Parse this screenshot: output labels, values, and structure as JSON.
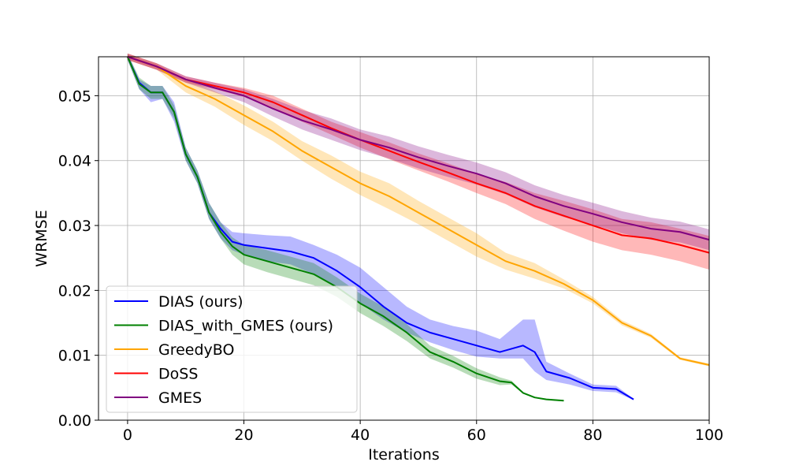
{
  "chart_data": {
    "type": "line",
    "title": "",
    "xlabel": "Iterations",
    "ylabel": "WRMSE",
    "xlim": [
      -5,
      100
    ],
    "ylim": [
      0.0,
      0.056
    ],
    "xticks": [
      0,
      20,
      40,
      60,
      80,
      100
    ],
    "yticks": [
      0.0,
      0.01,
      0.02,
      0.03,
      0.04,
      0.05
    ],
    "xtick_labels": [
      "0",
      "20",
      "40",
      "60",
      "80",
      "100"
    ],
    "ytick_labels": [
      "0.00",
      "0.01",
      "0.02",
      "0.03",
      "0.04",
      "0.05"
    ],
    "grid": true,
    "legend_position": "lower-left",
    "series": [
      {
        "name": "DIAS (ours)",
        "color": "#0000ff",
        "x": [
          0,
          2,
          4,
          6,
          8,
          10,
          12,
          14,
          16,
          18,
          20,
          24,
          28,
          32,
          36,
          40,
          44,
          48,
          52,
          56,
          60,
          64,
          68,
          70,
          72,
          76,
          80,
          84,
          87
        ],
        "y": [
          0.056,
          0.052,
          0.0505,
          0.0505,
          0.0475,
          0.041,
          0.0375,
          0.032,
          0.0295,
          0.0275,
          0.027,
          0.0265,
          0.026,
          0.025,
          0.023,
          0.0205,
          0.0175,
          0.015,
          0.0135,
          0.0125,
          0.0115,
          0.0105,
          0.0115,
          0.0105,
          0.0075,
          0.0065,
          0.005,
          0.0048,
          0.0032
        ],
        "lower": [
          0.0555,
          0.051,
          0.049,
          0.0495,
          0.046,
          0.04,
          0.0365,
          0.031,
          0.028,
          0.0262,
          0.0255,
          0.0245,
          0.024,
          0.0225,
          0.0205,
          0.018,
          0.0155,
          0.0135,
          0.012,
          0.0108,
          0.0098,
          0.0095,
          0.0095,
          0.0075,
          0.0062,
          0.0055,
          0.0045,
          0.0043,
          0.0031
        ],
        "upper": [
          0.0565,
          0.0525,
          0.0515,
          0.0515,
          0.049,
          0.042,
          0.0385,
          0.0335,
          0.0305,
          0.029,
          0.0288,
          0.0285,
          0.0283,
          0.027,
          0.0255,
          0.0235,
          0.0205,
          0.0175,
          0.0155,
          0.0145,
          0.0138,
          0.0125,
          0.0155,
          0.0155,
          0.009,
          0.0072,
          0.0055,
          0.0053,
          0.0033
        ]
      },
      {
        "name": "DIAS_with_GMES (ours)",
        "color": "#008000",
        "x": [
          0,
          2,
          4,
          6,
          8,
          10,
          12,
          14,
          16,
          18,
          20,
          24,
          28,
          32,
          36,
          40,
          44,
          48,
          52,
          56,
          60,
          64,
          66,
          68,
          70,
          72,
          75
        ],
        "y": [
          0.056,
          0.0518,
          0.0505,
          0.0505,
          0.0475,
          0.041,
          0.0375,
          0.032,
          0.029,
          0.0268,
          0.0255,
          0.0245,
          0.0235,
          0.0225,
          0.0205,
          0.018,
          0.016,
          0.0135,
          0.0105,
          0.009,
          0.0072,
          0.006,
          0.0058,
          0.0042,
          0.0035,
          0.0032,
          0.003
        ],
        "lower": [
          0.0555,
          0.051,
          0.0495,
          0.0495,
          0.0465,
          0.04,
          0.0365,
          0.031,
          0.028,
          0.0255,
          0.024,
          0.0228,
          0.0218,
          0.0208,
          0.019,
          0.0165,
          0.0145,
          0.0122,
          0.0095,
          0.0081,
          0.0064,
          0.0054,
          0.0055,
          0.0041,
          0.0034,
          0.0031,
          0.0029
        ],
        "upper": [
          0.0565,
          0.0528,
          0.0515,
          0.0515,
          0.0485,
          0.042,
          0.0385,
          0.0335,
          0.0305,
          0.0282,
          0.027,
          0.0262,
          0.0252,
          0.0242,
          0.022,
          0.0195,
          0.0175,
          0.0148,
          0.0115,
          0.0099,
          0.008,
          0.0066,
          0.0061,
          0.0043,
          0.0036,
          0.0033,
          0.0031
        ]
      },
      {
        "name": "GreedyBO",
        "color": "#ffa500",
        "x": [
          0,
          5,
          10,
          15,
          20,
          25,
          30,
          35,
          40,
          45,
          50,
          55,
          60,
          65,
          70,
          75,
          80,
          85,
          90,
          95,
          100
        ],
        "y": [
          0.056,
          0.0545,
          0.0515,
          0.0495,
          0.047,
          0.0445,
          0.0415,
          0.039,
          0.0365,
          0.0345,
          0.032,
          0.0295,
          0.027,
          0.0245,
          0.023,
          0.021,
          0.0185,
          0.015,
          0.013,
          0.0095,
          0.0085
        ],
        "lower": [
          0.0555,
          0.054,
          0.0505,
          0.0483,
          0.0455,
          0.043,
          0.04,
          0.0372,
          0.0347,
          0.0325,
          0.0302,
          0.0277,
          0.0252,
          0.0232,
          0.0218,
          0.0203,
          0.018,
          0.0146,
          0.0127,
          0.0093,
          0.0083
        ],
        "upper": [
          0.0565,
          0.055,
          0.0525,
          0.0507,
          0.0485,
          0.046,
          0.043,
          0.0408,
          0.0383,
          0.0365,
          0.0338,
          0.0313,
          0.0288,
          0.0258,
          0.0242,
          0.0217,
          0.019,
          0.0154,
          0.0133,
          0.0097,
          0.0087
        ]
      },
      {
        "name": "DoSS",
        "color": "#ff0000",
        "x": [
          0,
          5,
          10,
          15,
          20,
          25,
          30,
          35,
          40,
          45,
          50,
          55,
          60,
          65,
          70,
          75,
          80,
          85,
          90,
          95,
          100
        ],
        "y": [
          0.056,
          0.0545,
          0.0525,
          0.0515,
          0.0505,
          0.049,
          0.047,
          0.045,
          0.0432,
          0.0415,
          0.0398,
          0.0382,
          0.0365,
          0.035,
          0.033,
          0.0315,
          0.03,
          0.0285,
          0.028,
          0.027,
          0.0258
        ],
        "lower": [
          0.0555,
          0.054,
          0.052,
          0.051,
          0.0498,
          0.048,
          0.046,
          0.044,
          0.042,
          0.0402,
          0.0385,
          0.0368,
          0.035,
          0.0333,
          0.031,
          0.0292,
          0.0275,
          0.0262,
          0.0255,
          0.0245,
          0.0232
        ],
        "upper": [
          0.0565,
          0.055,
          0.053,
          0.052,
          0.0512,
          0.05,
          0.048,
          0.046,
          0.0444,
          0.0428,
          0.0411,
          0.0396,
          0.038,
          0.0367,
          0.035,
          0.0338,
          0.0325,
          0.031,
          0.0305,
          0.0295,
          0.0284
        ]
      },
      {
        "name": "GMES",
        "color": "#800080",
        "x": [
          0,
          5,
          10,
          15,
          20,
          25,
          30,
          35,
          40,
          45,
          50,
          55,
          60,
          65,
          70,
          75,
          80,
          85,
          90,
          95,
          100
        ],
        "y": [
          0.056,
          0.0545,
          0.0525,
          0.0512,
          0.05,
          0.048,
          0.0462,
          0.0448,
          0.0432,
          0.042,
          0.0405,
          0.0392,
          0.038,
          0.0365,
          0.0345,
          0.033,
          0.0318,
          0.0305,
          0.0295,
          0.029,
          0.0278
        ],
        "lower": [
          0.0555,
          0.054,
          0.052,
          0.0505,
          0.049,
          0.0468,
          0.0448,
          0.0432,
          0.0416,
          0.0403,
          0.0388,
          0.0375,
          0.0363,
          0.0348,
          0.0328,
          0.0313,
          0.0301,
          0.0288,
          0.0278,
          0.0274,
          0.0262
        ],
        "upper": [
          0.0565,
          0.055,
          0.053,
          0.052,
          0.051,
          0.0495,
          0.0478,
          0.0465,
          0.0448,
          0.0437,
          0.0422,
          0.0409,
          0.0397,
          0.0382,
          0.0362,
          0.0347,
          0.0335,
          0.0322,
          0.0312,
          0.0306,
          0.0294
        ]
      }
    ]
  }
}
